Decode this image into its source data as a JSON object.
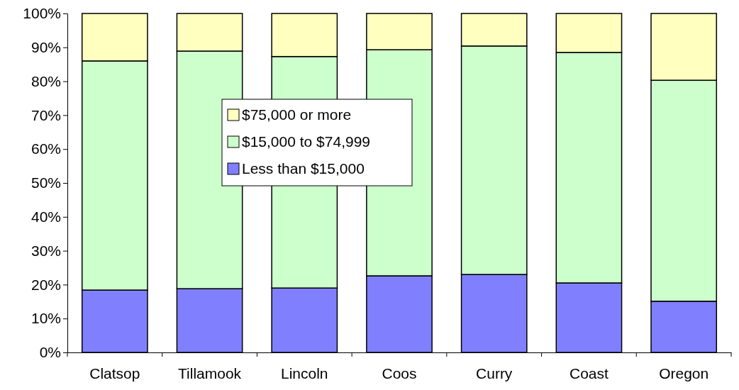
{
  "chart_data": {
    "type": "bar",
    "stacked": true,
    "categories": [
      "Clatsop",
      "Tillamook",
      "Lincoln",
      "Coos",
      "Curry",
      "Coast",
      "Oregon"
    ],
    "series": [
      {
        "name": "Less than $15,000",
        "color": "#8080ff",
        "values": [
          18.4,
          18.8,
          19.0,
          22.6,
          23.0,
          20.5,
          15.1
        ]
      },
      {
        "name": "$15,000 to $74,999",
        "color": "#ccffcc",
        "values": [
          67.6,
          70.1,
          68.3,
          66.7,
          67.4,
          68.0,
          65.2
        ]
      },
      {
        "name": "$75,000 or more",
        "color": "#ffffc0",
        "values": [
          14.0,
          11.1,
          12.7,
          10.7,
          9.6,
          11.5,
          19.7
        ]
      }
    ],
    "ylim": [
      0,
      100
    ],
    "yticks": [
      {
        "value": 0,
        "label": "0%"
      },
      {
        "value": 10,
        "label": "10%"
      },
      {
        "value": 20,
        "label": "20%"
      },
      {
        "value": 30,
        "label": "30%"
      },
      {
        "value": 40,
        "label": "40%"
      },
      {
        "value": 50,
        "label": "50%"
      },
      {
        "value": 60,
        "label": "60%"
      },
      {
        "value": 70,
        "label": "70%"
      },
      {
        "value": 80,
        "label": "80%"
      },
      {
        "value": 90,
        "label": "90%"
      },
      {
        "value": 100,
        "label": "100%"
      }
    ],
    "legend": "center left"
  }
}
